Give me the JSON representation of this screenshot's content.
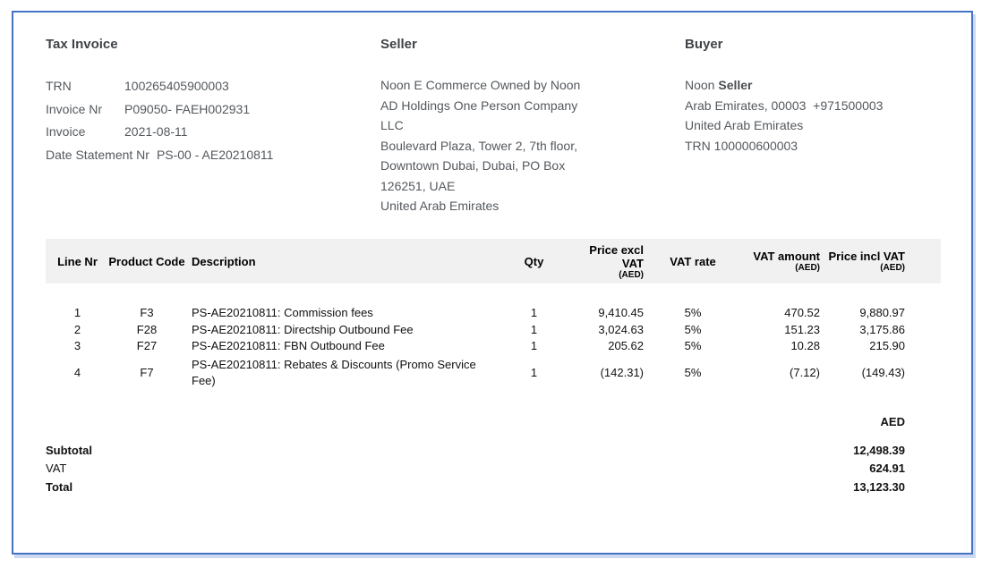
{
  "invoice": {
    "title": "Tax Invoice",
    "meta": [
      {
        "label": "TRN",
        "value": "100265405900003"
      },
      {
        "label": "Invoice Nr",
        "value": "P09050- FAEH002931"
      },
      {
        "label": "Invoice",
        "value": "2021-08-11"
      },
      {
        "label": "Date Statement Nr",
        "value": "PS-00 - AE20210811"
      }
    ]
  },
  "seller": {
    "heading": "Seller",
    "lines": [
      "Noon E Commerce Owned by Noon",
      "AD Holdings One Person Company",
      "LLC",
      "Boulevard Plaza, Tower 2, 7th floor,",
      "Downtown Dubai, Dubai, PO Box",
      "126251, UAE",
      "United Arab Emirates"
    ]
  },
  "buyer": {
    "heading": "Buyer",
    "name_regular": "Noon ",
    "name_bold": "Seller",
    "lines": [
      "Arab Emirates, 00003  +971500003",
      "United Arab Emirates",
      "TRN 100000600003"
    ]
  },
  "table": {
    "columns": [
      {
        "label": "Line Nr",
        "sub": ""
      },
      {
        "label": "Product Code",
        "sub": ""
      },
      {
        "label": "Description",
        "sub": ""
      },
      {
        "label": "Qty",
        "sub": ""
      },
      {
        "label": "Price excl VAT",
        "sub": "(AED)"
      },
      {
        "label": "VAT rate",
        "sub": ""
      },
      {
        "label": "VAT amount",
        "sub": "(AED)"
      },
      {
        "label": "Price incl VAT",
        "sub": "(AED)"
      }
    ],
    "rows": [
      {
        "line_nr": "1",
        "product_code": "F3",
        "description": "PS-AE20210811: Commission fees",
        "qty": "1",
        "price_excl_vat": "9,410.45",
        "vat_rate": "5%",
        "vat_amount": "470.52",
        "price_incl_vat": "9,880.97"
      },
      {
        "line_nr": "2",
        "product_code": "F28",
        "description": "PS-AE20210811: Directship Outbound Fee",
        "qty": "1",
        "price_excl_vat": "3,024.63",
        "vat_rate": "5%",
        "vat_amount": "151.23",
        "price_incl_vat": "3,175.86"
      },
      {
        "line_nr": "3",
        "product_code": "F27",
        "description": "PS-AE20210811: FBN Outbound Fee",
        "qty": "1",
        "price_excl_vat": "205.62",
        "vat_rate": "5%",
        "vat_amount": "10.28",
        "price_incl_vat": "215.90"
      },
      {
        "line_nr": "4",
        "product_code": "F7",
        "description": "PS-AE20210811: Rebates & Discounts (Promo Service Fee)",
        "qty": "1",
        "price_excl_vat": "(142.31)",
        "vat_rate": "5%",
        "vat_amount": "(7.12)",
        "price_incl_vat": "(149.43)"
      }
    ]
  },
  "summary": {
    "currency": "AED",
    "rows": [
      {
        "label": "Subtotal",
        "value": "12,498.39"
      },
      {
        "label": "VAT",
        "value": "624.91"
      },
      {
        "label": "Total",
        "value": "13,123.30"
      }
    ]
  },
  "colors": {
    "accent_border": "#4472c4",
    "header_band": "#f1f1f1",
    "body_text": "#54595e",
    "table_text": "#111111"
  }
}
